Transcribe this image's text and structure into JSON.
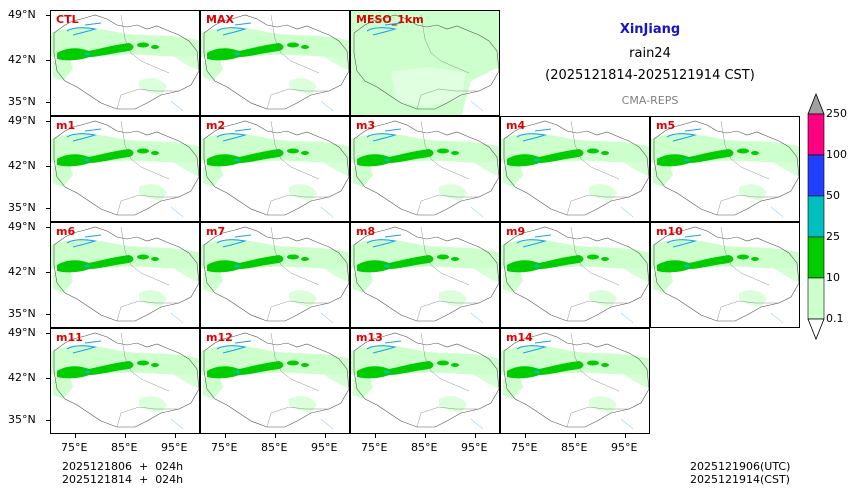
{
  "title": {
    "region": "XinJiang",
    "variable": "rain24",
    "period": "(2025121814-2025121914 CST)",
    "model": "CMA-REPS"
  },
  "panels": [
    {
      "label": "CTL",
      "type": "member"
    },
    {
      "label": "MAX",
      "type": "member"
    },
    {
      "label": "MESO_1km",
      "type": "meso"
    },
    {
      "label": "m1",
      "type": "member"
    },
    {
      "label": "m2",
      "type": "member"
    },
    {
      "label": "m3",
      "type": "member"
    },
    {
      "label": "m4",
      "type": "member"
    },
    {
      "label": "m5",
      "type": "member"
    },
    {
      "label": "m6",
      "type": "member"
    },
    {
      "label": "m7",
      "type": "member"
    },
    {
      "label": "m8",
      "type": "member"
    },
    {
      "label": "m9",
      "type": "member"
    },
    {
      "label": "m10",
      "type": "member"
    },
    {
      "label": "m11",
      "type": "member"
    },
    {
      "label": "m12",
      "type": "member"
    },
    {
      "label": "m13",
      "type": "member"
    },
    {
      "label": "m14",
      "type": "member"
    }
  ],
  "latitude_labels": [
    "49°N",
    "42°N",
    "35°N"
  ],
  "longitude_labels": [
    "75°E",
    "85°E",
    "95°E"
  ],
  "colorbar": {
    "levels": [
      "0.1",
      "10",
      "25",
      "50",
      "100",
      "250"
    ],
    "colors": [
      "#ccffcc",
      "#00cc00",
      "#00bfbf",
      "#2040ff",
      "#ff0080",
      "#a0a0a0"
    ]
  },
  "footer": {
    "init_line": "2025121806  +  024h",
    "valid_line": "2025121814  +  024h",
    "utc": "2025121906(UTC)",
    "cst": "2025121914(CST)"
  }
}
